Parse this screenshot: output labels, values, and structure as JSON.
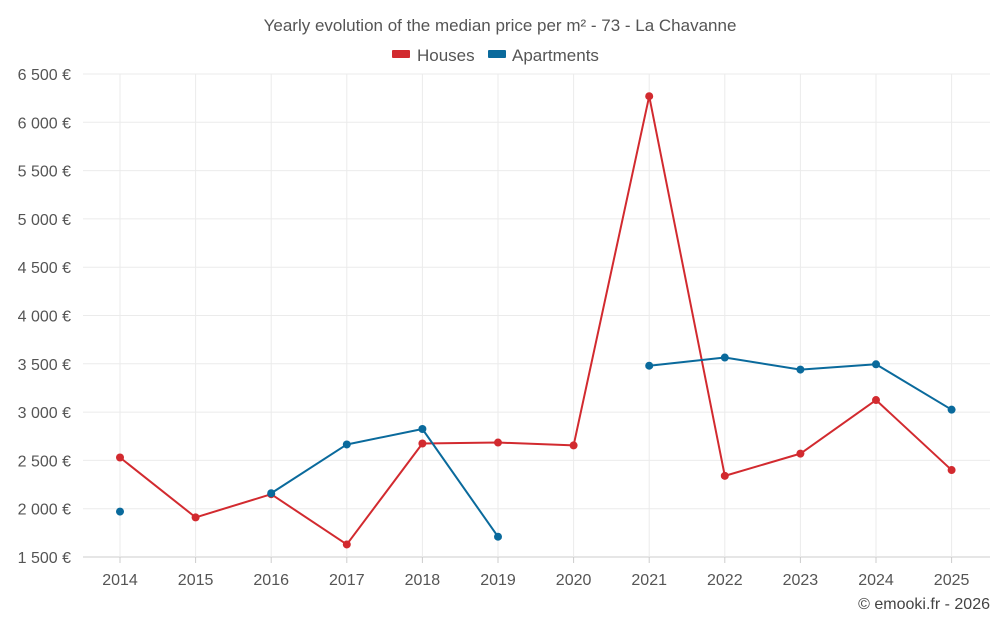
{
  "chart_data": {
    "type": "line",
    "title": "Yearly evolution of the median price per m² - 73 - La Chavanne",
    "categories": [
      "2014",
      "2015",
      "2016",
      "2017",
      "2018",
      "2019",
      "2020",
      "2021",
      "2022",
      "2023",
      "2024",
      "2025"
    ],
    "series": [
      {
        "name": "Houses",
        "color": "#d22a2f",
        "values": [
          2530,
          1910,
          2150,
          1630,
          2675,
          2685,
          2655,
          6270,
          2340,
          2570,
          3125,
          2400
        ]
      },
      {
        "name": "Apartments",
        "color": "#0a6a9c",
        "values": [
          1970,
          null,
          2160,
          2665,
          2825,
          1710,
          null,
          3480,
          3565,
          3440,
          3495,
          3025
        ]
      }
    ],
    "ylim": [
      1500,
      6500
    ],
    "yticks": [
      1500,
      2000,
      2500,
      3000,
      3500,
      4000,
      4500,
      5000,
      5500,
      6000,
      6500
    ],
    "ytick_labels": [
      "1 500 €",
      "2 000 €",
      "2 500 €",
      "3 000 €",
      "3 500 €",
      "4 000 €",
      "4 500 €",
      "5 000 €",
      "5 500 €",
      "6 000 €",
      "6 500 €"
    ],
    "xlabel": "",
    "ylabel": "",
    "grid": true,
    "legend_position": "top-center"
  },
  "credit": "© emooki.fr - 2026"
}
